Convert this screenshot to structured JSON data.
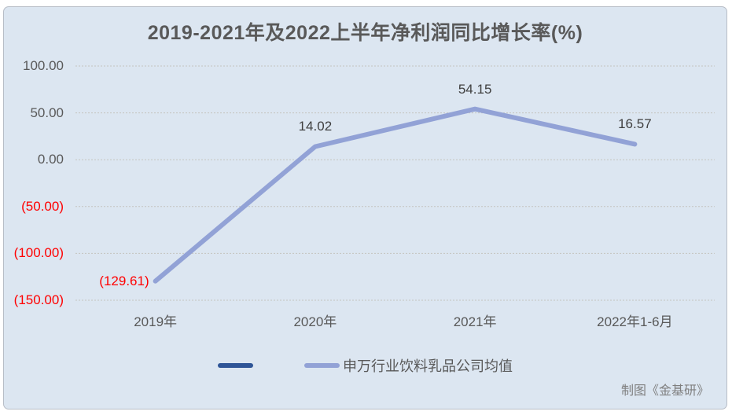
{
  "chart": {
    "title": "2019-2021年及2022上半年净利润同比增长率(%)",
    "credit": "制图《金基研》"
  },
  "chart_data": {
    "type": "line",
    "title": "2019-2021年及2022上半年净利润同比增长率(%)",
    "categories": [
      "2019年",
      "2020年",
      "2021年",
      "2022年1-6月"
    ],
    "series": [
      {
        "name": "申万行业饮料乳品公司均值",
        "color": "#92a2d6",
        "values": [
          -129.61,
          14.02,
          54.15,
          16.57
        ],
        "labels": [
          "(129.61)",
          "14.02",
          "54.15",
          "16.57"
        ],
        "label_positions": [
          "left",
          "above",
          "above",
          "above"
        ]
      }
    ],
    "legend": [
      {
        "label": "",
        "color": "#2f5597"
      },
      {
        "label": "申万行业饮料乳品公司均值",
        "color": "#92a2d6"
      }
    ],
    "legend_position": "bottom",
    "grid": true,
    "line_width": 6,
    "xlabel": "",
    "ylabel": "",
    "y_axis": {
      "ylim": [
        -150,
        100
      ],
      "ticks": [
        {
          "label": "100.00",
          "value": 100,
          "color": "#595959"
        },
        {
          "label": "50.00",
          "value": 50,
          "color": "#595959"
        },
        {
          "label": "0.00",
          "value": 0,
          "color": "#595959"
        },
        {
          "label": "(50.00)",
          "value": -50,
          "color": "#ff0000"
        },
        {
          "label": "(100.00)",
          "value": -100,
          "color": "#ff0000"
        },
        {
          "label": "(150.00)",
          "value": -150,
          "color": "#ff0000"
        }
      ]
    },
    "negative_label_color": "#ff0000",
    "label_color": "#3f3f3f",
    "grid_color": "#c4c4bf"
  },
  "colors": {
    "panel_bg": "#dce6f1",
    "panel_border": "#b7bdc6",
    "title": "#595959",
    "axis_text": "#595959",
    "credit": "#7f7f7f"
  }
}
